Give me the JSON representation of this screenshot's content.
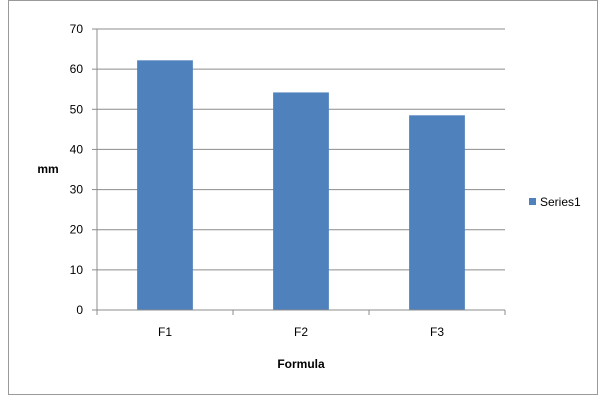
{
  "chart_data": {
    "type": "bar",
    "categories": [
      "F1",
      "F2",
      "F3"
    ],
    "series": [
      {
        "name": "Series1",
        "values": [
          62.2,
          54.2,
          48.5
        ],
        "color": "#4F81BD"
      }
    ],
    "title": "",
    "xlabel": "Formula",
    "ylabel": "mm",
    "ylim": [
      0,
      70
    ],
    "yticks": [
      "0",
      "10",
      "20",
      "30",
      "40",
      "50",
      "60",
      "70"
    ],
    "grid": true,
    "legend_position": "right"
  }
}
